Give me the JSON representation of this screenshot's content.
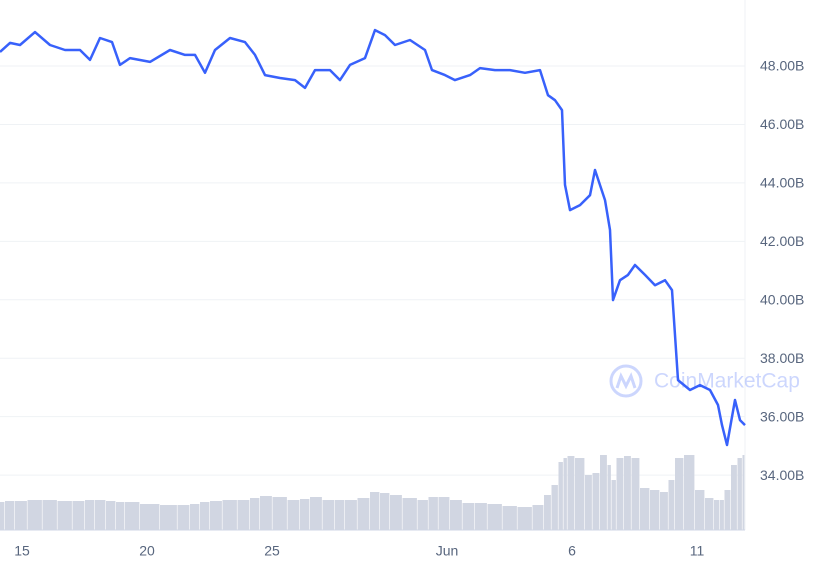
{
  "chart_data": {
    "type": "line",
    "watermark": "CoinMarketCap",
    "x": [
      14.12,
      14.52,
      14.92,
      15.52,
      16.12,
      16.72,
      17.32,
      17.72,
      18.12,
      18.6,
      18.92,
      19.32,
      20.12,
      20.92,
      21.52,
      21.92,
      22.32,
      22.72,
      23.32,
      23.92,
      24.32,
      24.72,
      25.32,
      25.92,
      26.32,
      26.72,
      27.32,
      27.72,
      28.12,
      28.72,
      29.12,
      29.52,
      29.92,
      30.52,
      31.12,
      31.4,
      31.92,
      32.32,
      32.92,
      33.32,
      33.92,
      34.52,
      35.12,
      35.72,
      36.04,
      36.32,
      36.6,
      36.72,
      36.92,
      37.32,
      37.72,
      37.92,
      38.32,
      38.52,
      38.64,
      38.92,
      39.24,
      39.52,
      39.92,
      40.32,
      40.72,
      41.0,
      41.24,
      41.72,
      42.12,
      42.52,
      42.84,
      43.0,
      43.2,
      43.52,
      43.72,
      43.92
    ],
    "series": [
      {
        "color": "#3861fb",
        "values": [
          48.48,
          48.79,
          48.72,
          49.16,
          48.72,
          48.55,
          48.55,
          48.21,
          48.96,
          48.82,
          48.04,
          48.27,
          48.14,
          48.55,
          48.38,
          48.38,
          47.77,
          48.55,
          48.96,
          48.82,
          48.38,
          47.69,
          47.59,
          47.52,
          47.25,
          47.86,
          47.86,
          47.52,
          48.04,
          48.27,
          49.23,
          49.06,
          48.72,
          48.89,
          48.55,
          47.86,
          47.69,
          47.52,
          47.69,
          47.93,
          47.86,
          47.86,
          47.77,
          47.86,
          47.0,
          46.83,
          46.49,
          43.93,
          43.07,
          43.24,
          43.58,
          44.44,
          43.41,
          42.39,
          39.99,
          40.67,
          40.85,
          41.19,
          40.85,
          40.5,
          40.67,
          40.33,
          37.25,
          36.91,
          37.08,
          36.91,
          36.4,
          35.71,
          35.03,
          36.57,
          35.88,
          35.71
        ]
      },
      {
        "color": "#d1d6e2",
        "axis": "y2",
        "values": [
          28,
          29,
          29,
          30,
          30,
          29,
          29,
          30,
          30,
          29,
          28,
          28,
          26,
          25,
          25,
          26,
          28,
          29,
          30,
          30,
          32,
          34,
          33,
          30,
          31,
          33,
          30,
          30,
          30,
          32,
          38,
          37,
          35,
          32,
          30,
          33,
          33,
          30,
          27,
          27,
          26,
          24,
          23,
          25,
          35,
          45,
          68,
          72,
          74,
          72,
          55,
          57,
          75,
          65,
          50,
          72,
          74,
          72,
          42,
          40,
          38,
          50,
          72,
          75,
          40,
          32,
          30,
          30,
          40,
          65,
          72,
          75
        ]
      }
    ],
    "xlim": [
      14.12,
      43.92
    ],
    "xticks": [
      15,
      20,
      25,
      {
        "value": 32,
        "label": "Jun"
      },
      {
        "value": 37,
        "label": "6"
      },
      {
        "value": 42,
        "label": "11"
      }
    ],
    "ylim": [
      32.12,
      50.26
    ],
    "yticks": [
      {
        "value": 34,
        "label": "34.00B"
      },
      {
        "value": 36,
        "label": "36.00B"
      },
      {
        "value": 38,
        "label": "38.00B"
      },
      {
        "value": 40,
        "label": "40.00B"
      },
      {
        "value": 42,
        "label": "42.00B"
      },
      {
        "value": 44,
        "label": "44.00B"
      },
      {
        "value": 46,
        "label": "46.00B"
      },
      {
        "value": 48,
        "label": "48.00B"
      }
    ],
    "y2lim": [
      0,
      100
    ],
    "grid": true
  }
}
